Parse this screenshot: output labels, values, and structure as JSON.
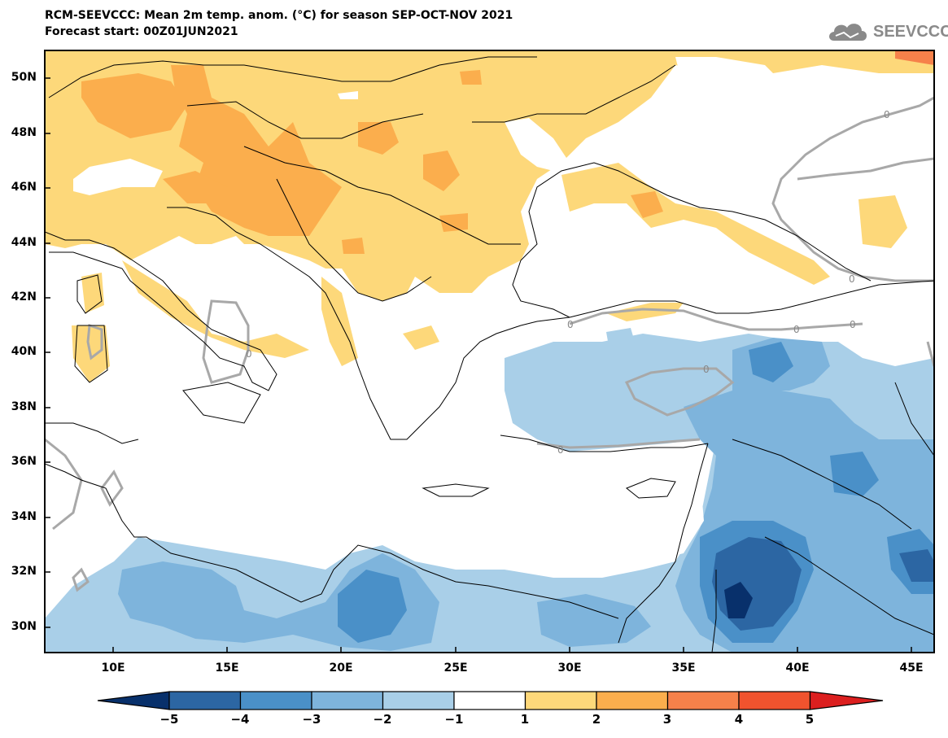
{
  "header": {
    "title_line1": "RCM-SEEVCCC: Mean 2m temp. anom. (°C) for season SEP-OCT-NOV 2021",
    "title_line2": "Forecast start: 00Z01JUN2021",
    "logo_text": "SEEVCCC",
    "logo_icon": "cloud-icon"
  },
  "map": {
    "lon_range": [
      7,
      46
    ],
    "lat_range": [
      29,
      51
    ],
    "lat_ticks": [
      "50N",
      "48N",
      "46N",
      "44N",
      "42N",
      "40N",
      "38N",
      "36N",
      "34N",
      "32N",
      "30N"
    ],
    "lon_ticks": [
      "10E",
      "15E",
      "20E",
      "25E",
      "30E",
      "35E",
      "40E",
      "45E"
    ],
    "contour_label": "0"
  },
  "colorbar": {
    "labels": [
      "−5",
      "−4",
      "−3",
      "−2",
      "−1",
      "1",
      "2",
      "3",
      "4",
      "5"
    ],
    "colors": [
      "#08306b",
      "#2c66a3",
      "#4a90c8",
      "#7eb4dc",
      "#a9cfe8",
      "#ffffff",
      "#fdd87a",
      "#fbae4d",
      "#f6814a",
      "#f0532e",
      "#dc1f1f"
    ]
  },
  "palette": {
    "warm1": "#fdd87a",
    "warm2": "#fbae4d",
    "cool1": "#a9cfe8",
    "cool2": "#7eb4dc",
    "cool3": "#4a90c8",
    "cool4": "#2c66a3",
    "cool5": "#08306b",
    "contour": "#a8a8a8"
  }
}
